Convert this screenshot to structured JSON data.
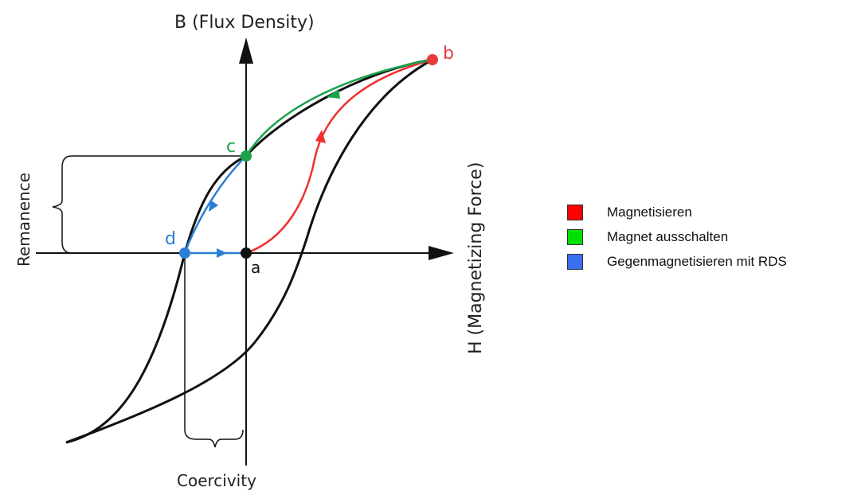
{
  "diagram": {
    "y_axis_label": "B (Flux Density)",
    "x_axis_label": "H (Magnetizing Force)",
    "remanence_label": "Remanence",
    "coercivity_label": "Coercivity",
    "points": {
      "a": {
        "label": "a",
        "color": "#111111"
      },
      "b": {
        "label": "b",
        "color": "#e83a3a"
      },
      "c": {
        "label": "c",
        "color": "#1aa34a"
      },
      "d": {
        "label": "d",
        "color": "#2a7fd4"
      }
    },
    "colors": {
      "hysteresis": "#111111",
      "magnetize": "#f03030",
      "switch_off": "#1aa34a",
      "counter_magnetize": "#2a7fd4"
    }
  },
  "legend": {
    "items": [
      {
        "label": "Magnetisieren",
        "color": "#ff0000"
      },
      {
        "label": "Magnet ausschalten",
        "color": "#00e000"
      },
      {
        "label": "Gegenmagnetisieren mit RDS",
        "color": "#3a6ff0"
      }
    ]
  }
}
